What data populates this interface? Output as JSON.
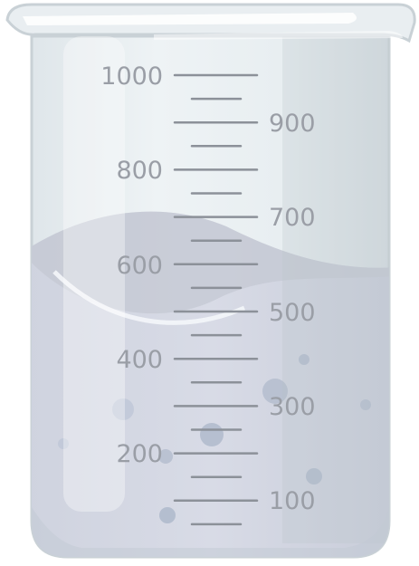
{
  "beaker": {
    "scale_labels": {
      "left": [
        "1000",
        "800",
        "600",
        "400",
        "200"
      ],
      "right": [
        "900",
        "700",
        "500",
        "300",
        "100"
      ]
    },
    "liquid_level": 620,
    "scale_max": 1000,
    "colors": {
      "glass": "#e6ecef",
      "glass_edge": "#c9d1d6",
      "liquid": "#d3d6e2",
      "tick": "#8c9199",
      "label": "#9a9ea6",
      "bubble": "#b8c2d3"
    }
  }
}
